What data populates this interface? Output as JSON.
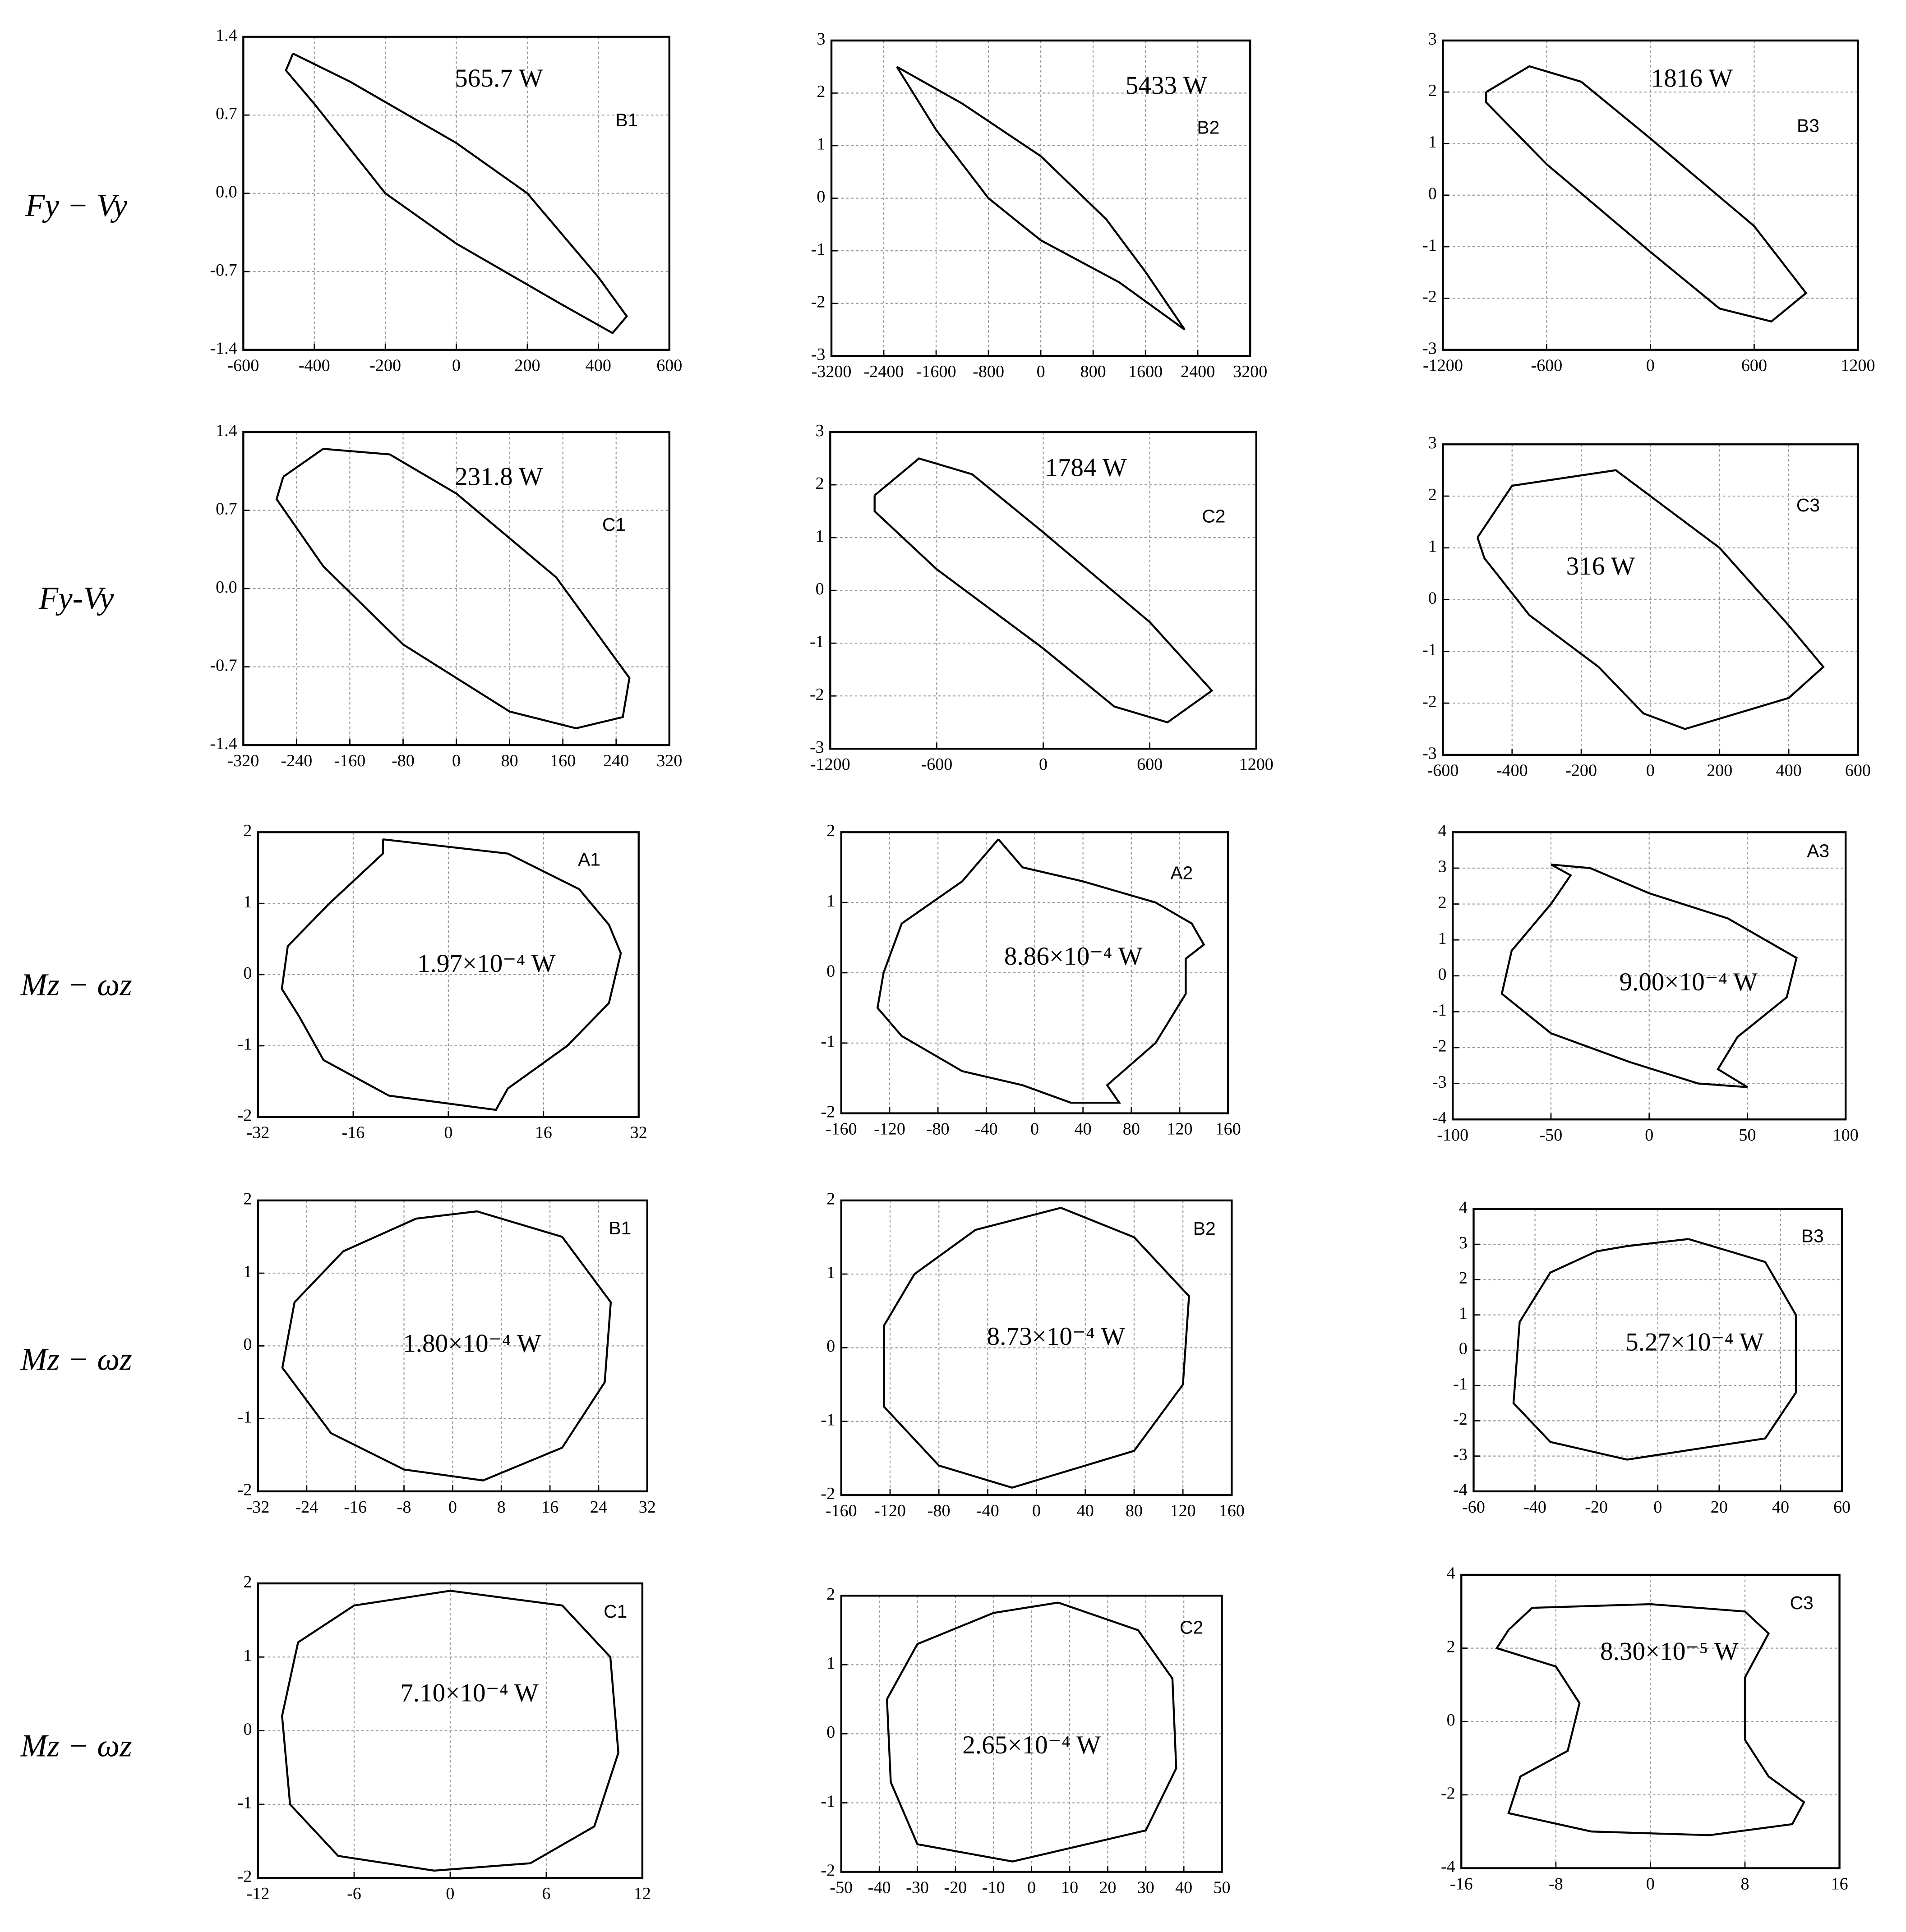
{
  "row_labels": [
    "Fy − Vy",
    "Fy-Vy",
    "Mz − ωz",
    "Mz − ωz",
    "Mz − ωz"
  ],
  "chart_data": [
    {
      "type": "line",
      "label": "B1",
      "annotation": "565.7 W",
      "color": "#000000",
      "grid": true,
      "xlim": [
        -600,
        600
      ],
      "xticks": [
        -600,
        -400,
        -200,
        0,
        200,
        400,
        600
      ],
      "ylim": [
        -1.4,
        1.4
      ],
      "yticks": [
        -1.4,
        -0.7,
        {
          "value": 0,
          "label": "0.0"
        },
        0.7,
        1.4
      ],
      "x": [
        -460,
        -300,
        0,
        200,
        400,
        480,
        440,
        300,
        0,
        -200,
        -400,
        -480,
        -460
      ],
      "values": [
        1.25,
        1.0,
        0.45,
        0.0,
        -0.75,
        -1.1,
        -1.25,
        -1.0,
        -0.45,
        0.0,
        0.8,
        1.1,
        1.25
      ]
    },
    {
      "type": "line",
      "label": "B2",
      "annotation": "5433 W",
      "color": "#000000",
      "grid": true,
      "xlim": [
        -3200,
        3200
      ],
      "xticks": [
        -3200,
        -2400,
        -1600,
        -800,
        0,
        800,
        1600,
        2400,
        3200
      ],
      "ylim": [
        -3,
        3
      ],
      "yticks": [
        -3,
        -2,
        -1,
        0,
        1,
        2,
        3
      ],
      "x": [
        -2200,
        -1200,
        0,
        1000,
        1600,
        2200,
        1200,
        0,
        -800,
        -1600,
        -2200
      ],
      "values": [
        2.5,
        1.8,
        0.8,
        -0.4,
        -1.4,
        -2.5,
        -1.6,
        -0.8,
        0.0,
        1.3,
        2.5
      ]
    },
    {
      "type": "line",
      "label": "B3",
      "annotation": "1816 W",
      "color": "#000000",
      "grid": true,
      "xlim": [
        -1200,
        1200
      ],
      "xticks": [
        -1200,
        -600,
        0,
        600,
        1200
      ],
      "ylim": [
        -3,
        3
      ],
      "yticks": [
        -3,
        -2,
        -1,
        0,
        1,
        2,
        3
      ],
      "x": [
        -950,
        -700,
        -400,
        0,
        600,
        900,
        700,
        400,
        0,
        -600,
        -950,
        -950
      ],
      "values": [
        2.0,
        2.5,
        2.2,
        1.1,
        -0.6,
        -1.9,
        -2.45,
        -2.2,
        -1.1,
        0.6,
        1.8,
        2.0
      ]
    },
    {
      "type": "line",
      "label": "C1",
      "annotation": "231.8 W",
      "color": "#000000",
      "grid": true,
      "xlim": [
        -320,
        320
      ],
      "xticks": [
        -320,
        -240,
        -160,
        -80,
        0,
        80,
        160,
        240,
        320
      ],
      "ylim": [
        -1.4,
        1.4
      ],
      "yticks": [
        -1.4,
        -0.7,
        {
          "value": 0,
          "label": "0.0"
        },
        0.7,
        1.4
      ],
      "x": [
        -260,
        -200,
        -100,
        0,
        150,
        260,
        250,
        180,
        80,
        -80,
        -200,
        -270,
        -260
      ],
      "values": [
        1.0,
        1.25,
        1.2,
        0.85,
        0.1,
        -0.8,
        -1.15,
        -1.25,
        -1.1,
        -0.5,
        0.2,
        0.8,
        1.0
      ]
    },
    {
      "type": "line",
      "label": "C2",
      "annotation": "1784 W",
      "color": "#000000",
      "grid": true,
      "xlim": [
        -1200,
        1200
      ],
      "xticks": [
        -1200,
        -600,
        0,
        600,
        1200
      ],
      "ylim": [
        -3,
        3
      ],
      "yticks": [
        -3,
        -2,
        -1,
        0,
        1,
        2,
        3
      ],
      "x": [
        -950,
        -700,
        -400,
        0,
        600,
        950,
        700,
        400,
        0,
        -600,
        -950,
        -950
      ],
      "values": [
        1.8,
        2.5,
        2.2,
        1.1,
        -0.6,
        -1.9,
        -2.5,
        -2.2,
        -1.1,
        0.4,
        1.5,
        1.8
      ]
    },
    {
      "type": "line",
      "label": "C3",
      "annotation": "316 W",
      "color": "#000000",
      "grid": true,
      "xlim": [
        -600,
        600
      ],
      "xticks": [
        -600,
        -400,
        -200,
        0,
        200,
        400,
        600
      ],
      "ylim": [
        -3,
        3
      ],
      "yticks": [
        -3,
        -2,
        -1,
        0,
        1,
        2,
        3
      ],
      "x": [
        -500,
        -400,
        -100,
        0,
        200,
        400,
        500,
        400,
        100,
        -20,
        -150,
        -350,
        -480,
        -500
      ],
      "values": [
        1.2,
        2.2,
        2.5,
        2.0,
        1.0,
        -0.5,
        -1.3,
        -1.9,
        -2.5,
        -2.2,
        -1.3,
        -0.3,
        0.8,
        1.2
      ]
    },
    {
      "type": "line",
      "label": "A1",
      "annotation": "1.97×10⁻⁴ W",
      "color": "#000000",
      "grid": true,
      "xlim": [
        -32,
        32
      ],
      "xticks": [
        -32,
        -16,
        0,
        16,
        32
      ],
      "ylim": [
        -2,
        2
      ],
      "yticks": [
        -2,
        -1,
        0,
        1,
        2
      ],
      "x": [
        -11,
        -11,
        -20,
        -27,
        -28,
        -25,
        -21,
        -10,
        8,
        10,
        20,
        27,
        29,
        27,
        22,
        10,
        -11
      ],
      "values": [
        1.9,
        1.7,
        1.0,
        0.4,
        -0.2,
        -0.6,
        -1.2,
        -1.7,
        -1.9,
        -1.6,
        -1.0,
        -0.4,
        0.3,
        0.7,
        1.2,
        1.7,
        1.9
      ]
    },
    {
      "type": "line",
      "label": "A2",
      "annotation": "8.86×10⁻⁴ W",
      "color": "#000000",
      "grid": true,
      "xlim": [
        -160,
        160
      ],
      "xticks": [
        -160,
        -120,
        -80,
        -40,
        0,
        40,
        80,
        120,
        160
      ],
      "ylim": [
        -2,
        2
      ],
      "yticks": [
        -2,
        -1,
        0,
        1,
        2
      ],
      "x": [
        -30,
        -10,
        40,
        100,
        130,
        140,
        125,
        125,
        100,
        60,
        70,
        30,
        -10,
        -60,
        -110,
        -130,
        -125,
        -110,
        -60,
        -30
      ],
      "values": [
        1.9,
        1.5,
        1.3,
        1.0,
        0.7,
        0.4,
        0.2,
        -0.3,
        -1.0,
        -1.6,
        -1.85,
        -1.85,
        -1.6,
        -1.4,
        -0.9,
        -0.5,
        0.0,
        0.7,
        1.3,
        1.9
      ]
    },
    {
      "type": "line",
      "label": "A3",
      "annotation": "9.00×10⁻⁴ W",
      "color": "#000000",
      "grid": true,
      "xlim": [
        -100,
        100
      ],
      "xticks": [
        -100,
        -50,
        0,
        50,
        100
      ],
      "ylim": [
        -4,
        4
      ],
      "yticks": [
        -4,
        -3,
        -2,
        -1,
        0,
        1,
        2,
        3,
        4
      ],
      "x": [
        -50,
        -30,
        0,
        40,
        75,
        70,
        45,
        35,
        50,
        25,
        -10,
        -50,
        -75,
        -70,
        -50,
        -40,
        -50
      ],
      "values": [
        3.1,
        3.0,
        2.3,
        1.6,
        0.5,
        -0.6,
        -1.7,
        -2.6,
        -3.1,
        -3.0,
        -2.4,
        -1.6,
        -0.5,
        0.7,
        2.0,
        2.8,
        3.1
      ]
    },
    {
      "type": "line",
      "label": "B1",
      "annotation": "1.80×10⁻⁴  W",
      "color": "#000000",
      "grid": true,
      "xlim": [
        -32,
        32
      ],
      "xticks": [
        -32,
        -24,
        -16,
        -8,
        0,
        8,
        16,
        24,
        32
      ],
      "ylim": [
        -2,
        2
      ],
      "yticks": [
        -2,
        -1,
        0,
        1,
        2
      ],
      "x": [
        4,
        18,
        26,
        25,
        18,
        5,
        -8,
        -20,
        -28,
        -26,
        -18,
        -6,
        4
      ],
      "values": [
        1.85,
        1.5,
        0.6,
        -0.5,
        -1.4,
        -1.85,
        -1.7,
        -1.2,
        -0.3,
        0.6,
        1.3,
        1.75,
        1.85
      ]
    },
    {
      "type": "line",
      "label": "B2",
      "annotation": "8.73×10⁻⁴ W",
      "color": "#000000",
      "grid": true,
      "xlim": [
        -160,
        160
      ],
      "xticks": [
        -160,
        -120,
        -80,
        -40,
        0,
        40,
        80,
        120,
        160
      ],
      "ylim": [
        -2,
        2
      ],
      "yticks": [
        -2,
        -1,
        0,
        1,
        2
      ],
      "x": [
        20,
        80,
        125,
        120,
        80,
        -20,
        -80,
        -125,
        -125,
        -100,
        -50,
        20
      ],
      "values": [
        1.9,
        1.5,
        0.7,
        -0.5,
        -1.4,
        -1.9,
        -1.6,
        -0.8,
        0.3,
        1.0,
        1.6,
        1.9
      ]
    },
    {
      "type": "line",
      "label": "B3",
      "annotation": "5.27×10⁻⁴ W",
      "color": "#000000",
      "grid": true,
      "xlim": [
        -60,
        60
      ],
      "xticks": [
        -60,
        -40,
        -20,
        0,
        20,
        40,
        60
      ],
      "ylim": [
        -4,
        4
      ],
      "yticks": [
        -4,
        -3,
        -2,
        -1,
        0,
        1,
        2,
        3,
        4
      ],
      "x": [
        10,
        35,
        45,
        45,
        35,
        -10,
        -35,
        -47,
        -45,
        -35,
        -20,
        -10,
        10
      ],
      "values": [
        3.15,
        2.5,
        1.0,
        -1.2,
        -2.5,
        -3.1,
        -2.6,
        -1.5,
        0.8,
        2.2,
        2.8,
        2.95,
        3.15
      ]
    },
    {
      "type": "line",
      "label": "C1",
      "annotation": "7.10×10⁻⁴ W",
      "color": "#000000",
      "grid": true,
      "xlim": [
        -12,
        12
      ],
      "xticks": [
        -12,
        -6,
        0,
        6,
        12
      ],
      "ylim": [
        -2,
        2
      ],
      "yticks": [
        -2,
        -1,
        0,
        1,
        2
      ],
      "x": [
        0,
        7,
        10,
        10.5,
        9,
        5,
        -1,
        -7,
        -10,
        -10.5,
        -9.5,
        -6,
        0
      ],
      "values": [
        1.9,
        1.7,
        1.0,
        -0.3,
        -1.3,
        -1.8,
        -1.9,
        -1.7,
        -1.0,
        0.2,
        1.2,
        1.7,
        1.9
      ]
    },
    {
      "type": "line",
      "label": "C2",
      "annotation": "2.65×10⁻⁴ W",
      "color": "#000000",
      "grid": true,
      "xlim": [
        -50,
        50
      ],
      "xticks": [
        -50,
        -40,
        -30,
        -20,
        -10,
        0,
        10,
        20,
        30,
        40,
        50
      ],
      "ylim": [
        -2,
        2
      ],
      "yticks": [
        -2,
        -1,
        0,
        1,
        2
      ],
      "x": [
        7,
        28,
        37,
        38,
        30,
        -5,
        -30,
        -37,
        -38,
        -30,
        -10,
        7
      ],
      "values": [
        1.9,
        1.5,
        0.8,
        -0.5,
        -1.4,
        -1.85,
        -1.6,
        -0.7,
        0.5,
        1.3,
        1.75,
        1.9
      ]
    },
    {
      "type": "line",
      "label": "C3",
      "annotation": "8.30×10⁻⁵ W",
      "color": "#000000",
      "grid": true,
      "xlim": [
        -16,
        16
      ],
      "xticks": [
        -16,
        -8,
        0,
        8,
        16
      ],
      "ylim": [
        -4,
        4
      ],
      "yticks": [
        -4,
        -2,
        0,
        2,
        4
      ],
      "x": [
        -12,
        -10,
        0,
        8,
        10,
        8,
        8,
        10,
        13,
        12,
        5,
        -5,
        -12,
        -11,
        -7,
        -6,
        -8,
        -13,
        -12
      ],
      "values": [
        2.5,
        3.1,
        3.2,
        3.0,
        2.4,
        1.2,
        -0.5,
        -1.5,
        -2.2,
        -2.8,
        -3.1,
        -3.0,
        -2.5,
        -1.5,
        -0.8,
        0.5,
        1.5,
        2.0,
        2.5
      ]
    }
  ]
}
